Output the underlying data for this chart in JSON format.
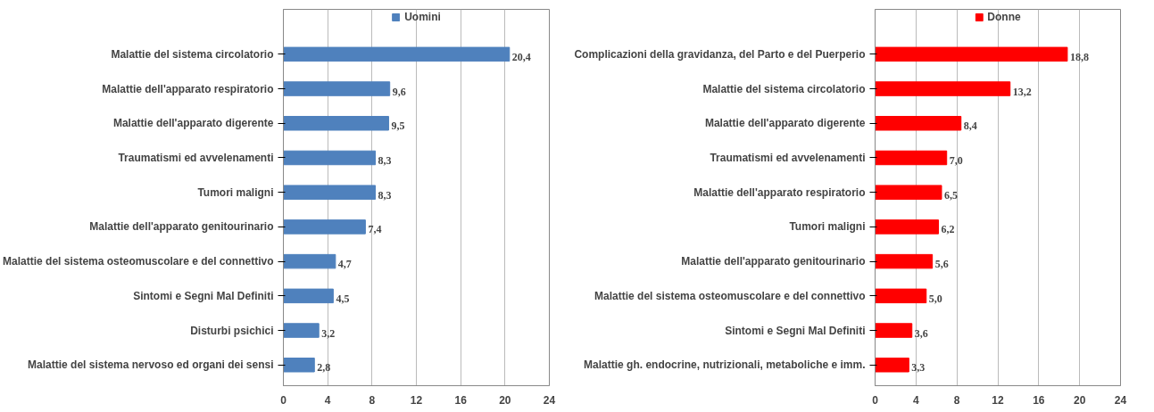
{
  "chart_data": [
    {
      "type": "bar",
      "orientation": "horizontal",
      "categories": [
        "Malattie del sistema circolatorio",
        "Malattie dell'apparato respiratorio",
        "Malattie dell'apparato digerente",
        "Traumatismi ed avvelenamenti",
        "Tumori maligni",
        "Malattie dell'apparato genitourinario",
        "Malattie del sistema osteomuscolare e del connettivo",
        "Sintomi e Segni Mal Definiti",
        "Disturbi psichici",
        "Malattie del sistema nervoso ed organi dei sensi"
      ],
      "series": [
        {
          "name": "Uomini",
          "color": "#4f81bd",
          "values": [
            20.4,
            9.6,
            9.5,
            8.3,
            8.3,
            7.4,
            4.7,
            4.5,
            3.2,
            2.8
          ],
          "value_labels": [
            "20,4",
            "9,6",
            "9,5",
            "8,3",
            "8,3",
            "7,4",
            "4,7",
            "4,5",
            "3,2",
            "2,8"
          ]
        }
      ],
      "xlim": [
        0,
        24
      ],
      "xticks": [
        0,
        4,
        8,
        12,
        16,
        20,
        24
      ],
      "grid": "x",
      "legend": "top"
    },
    {
      "type": "bar",
      "orientation": "horizontal",
      "categories": [
        "Complicazioni della gravidanza, del Parto e del Puerperio",
        "Malattie del sistema circolatorio",
        "Malattie dell'apparato digerente",
        "Traumatismi ed avvelenamenti",
        "Malattie dell'apparato respiratorio",
        "Tumori maligni",
        "Malattie dell'apparato genitourinario",
        "Malattie del sistema osteomuscolare e del connettivo",
        "Sintomi e Segni Mal Definiti",
        "Malattie gh. endocrine, nutrizionali, metaboliche e imm."
      ],
      "series": [
        {
          "name": "Donne",
          "color": "#ff0000",
          "values": [
            18.8,
            13.2,
            8.4,
            7.0,
            6.5,
            6.2,
            5.6,
            5.0,
            3.6,
            3.3
          ],
          "value_labels": [
            "18,8",
            "13,2",
            "8,4",
            "7,0",
            "6,5",
            "6,2",
            "5,6",
            "5,0",
            "3,6",
            "3,3"
          ]
        }
      ],
      "xlim": [
        0,
        24
      ],
      "xticks": [
        0,
        4,
        8,
        12,
        16,
        20,
        24
      ],
      "grid": "x",
      "legend": "top"
    }
  ]
}
